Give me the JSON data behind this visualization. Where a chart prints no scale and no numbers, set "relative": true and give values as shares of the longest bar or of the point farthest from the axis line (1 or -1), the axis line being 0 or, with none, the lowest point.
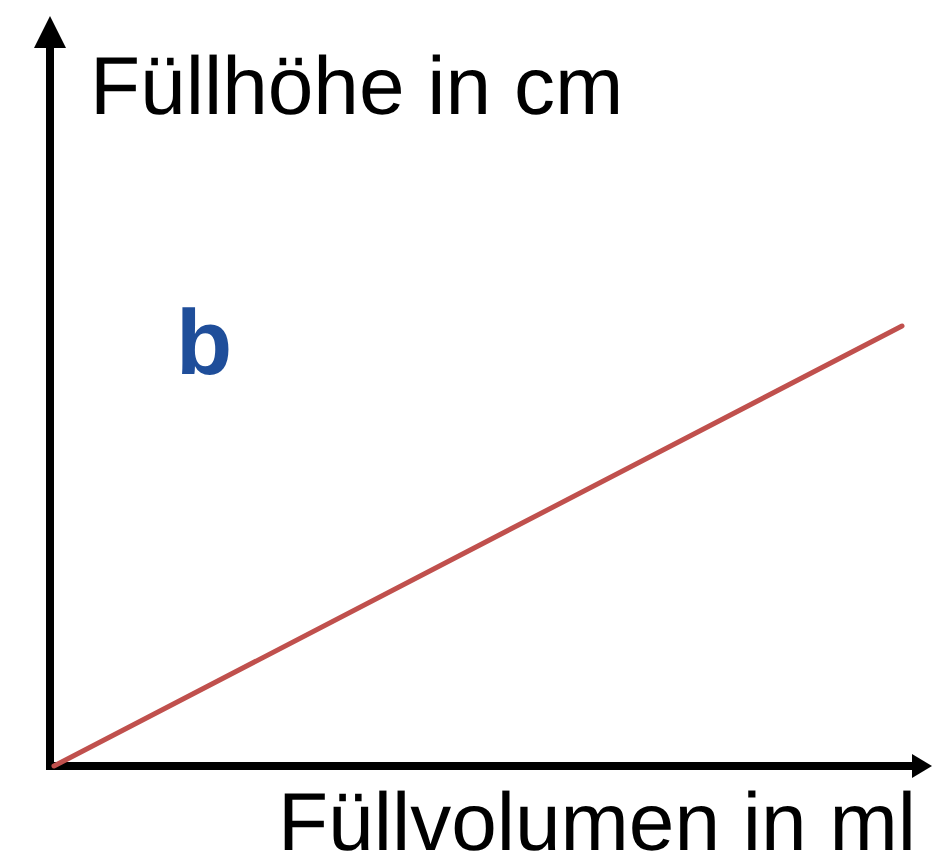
{
  "chart_data": {
    "type": "line",
    "relative": true,
    "categories": [
      null,
      null
    ],
    "values": [
      0,
      1
    ],
    "color": "#c0504d",
    "xlabel": "Füllvolumen in ml",
    "ylabel": "Füllhöhe in cm",
    "annotations": [
      "b"
    ]
  }
}
